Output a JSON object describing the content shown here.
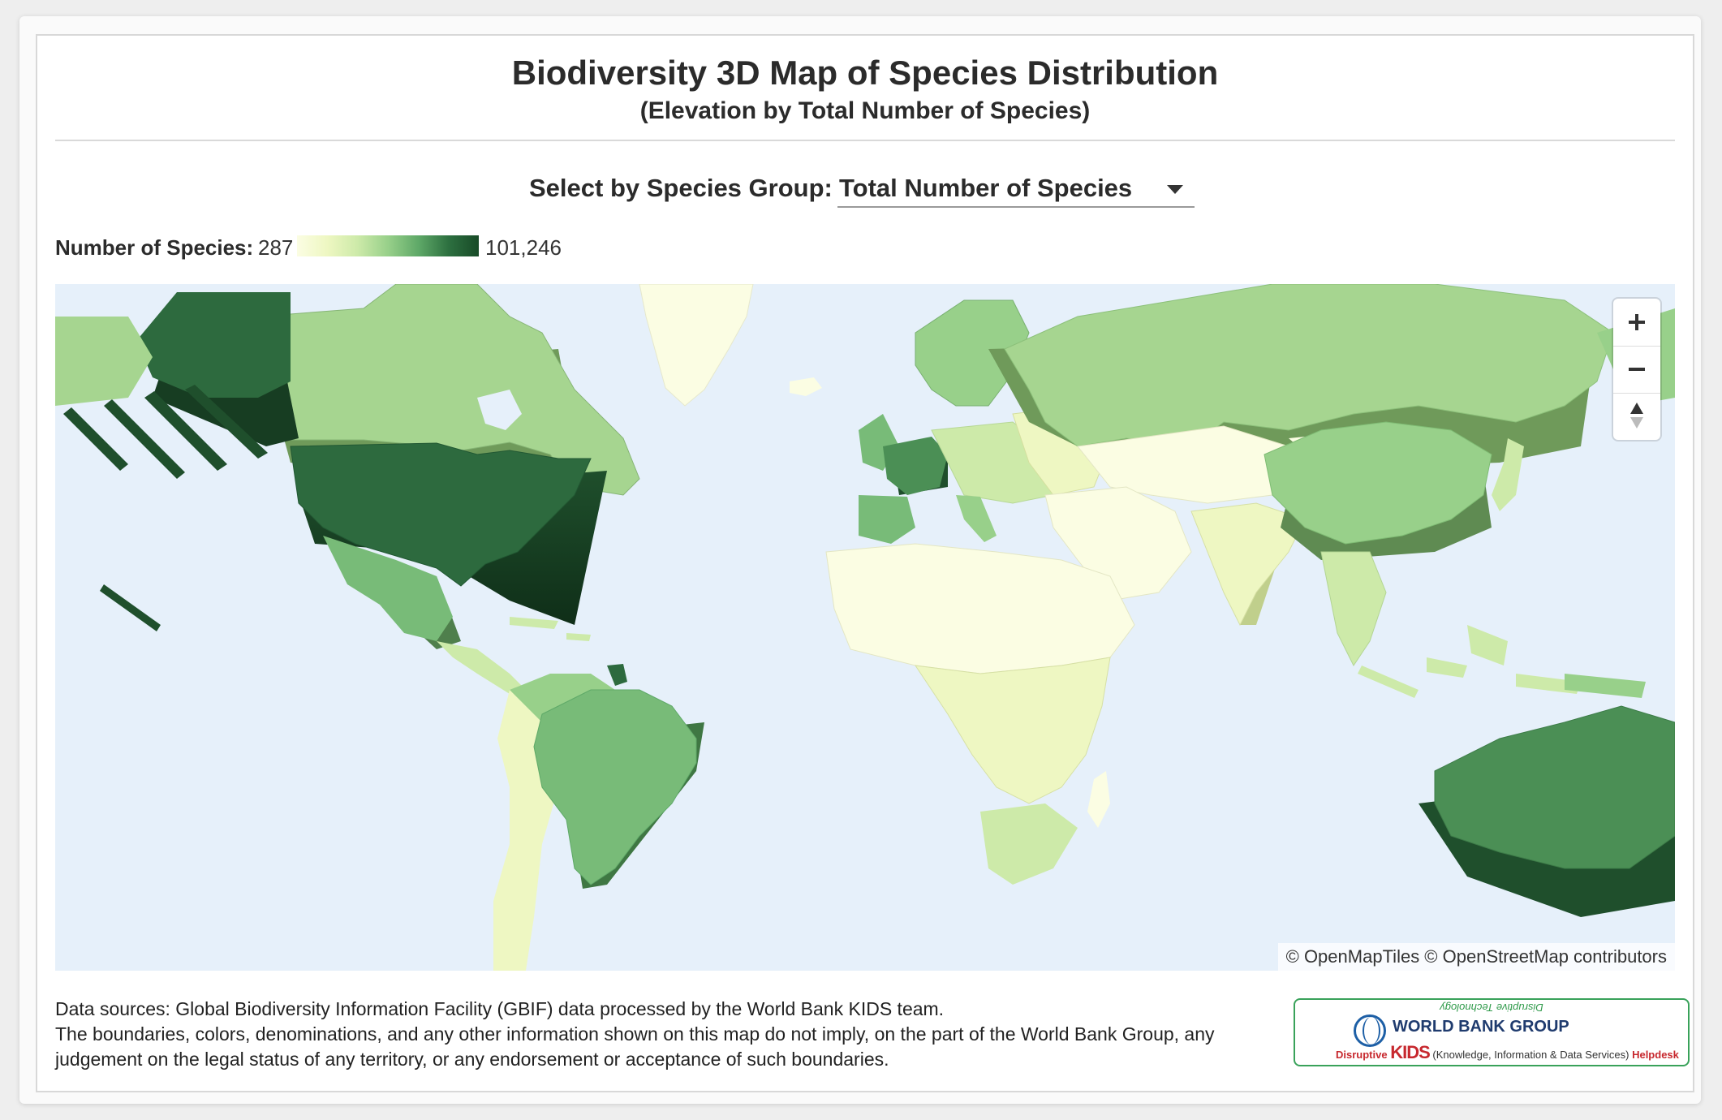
{
  "header": {
    "title": "Biodiversity 3D Map of Species Distribution",
    "subtitle": "(Elevation by Total Number of Species)"
  },
  "selector": {
    "label": "Select by Species Group:",
    "value": "Total Number of Species"
  },
  "legend": {
    "label": "Number of Species:",
    "min": "287",
    "max": "101,246",
    "colors": [
      "#fbfde3",
      "#eef7c2",
      "#cdeaa9",
      "#98d08a",
      "#5fa968",
      "#2d7040",
      "#184a27"
    ]
  },
  "map": {
    "ocean_color": "#e6f0fa",
    "controls": [
      "zoom-in",
      "zoom-out",
      "reset-north"
    ],
    "attribution": "© OpenMapTiles © OpenStreetMap contributors"
  },
  "footnote": {
    "line1": "Data sources: Global Biodiversity Information Facility (GBIF) data processed by the World Bank KIDS team.",
    "line2": "The boundaries, colors, denominations, and any other information shown on this map do not imply, on the part of the World Bank Group, any judgement on the legal status of any territory, or any endorsement or acceptance of such boundaries."
  },
  "logo": {
    "tagline": "Disruptive Technology",
    "org": "WORLD BANK GROUP",
    "word1": "Disruptive",
    "word2": "KIDS",
    "word3": "(Knowledge, Information & Data Services)",
    "word4": "Helpdesk"
  }
}
